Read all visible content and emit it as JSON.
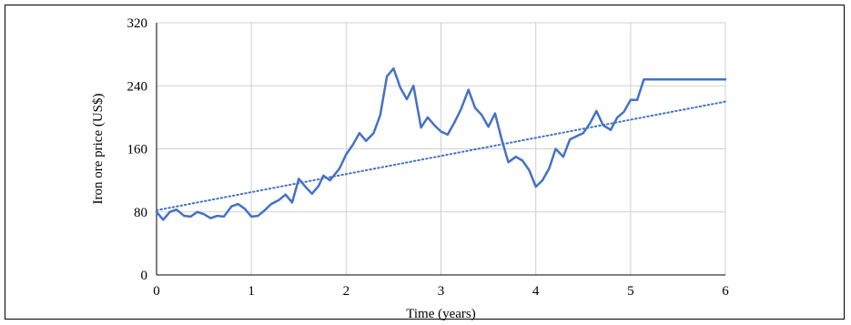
{
  "chart_data": {
    "type": "line",
    "title": "",
    "xlabel": "Time (years)",
    "ylabel": "Iron ore price (US$)",
    "xlim": [
      0,
      6
    ],
    "ylim": [
      0,
      320
    ],
    "x_ticks": [
      "0",
      "1",
      "2",
      "3",
      "4",
      "5",
      "6"
    ],
    "y_ticks": [
      "0",
      "80",
      "160",
      "240",
      "320"
    ],
    "grid": true,
    "legend": "none",
    "series": [
      {
        "type": "line",
        "color": "#4472C4",
        "x": [
          0,
          0.07,
          0.14,
          0.21,
          0.29,
          0.36,
          0.43,
          0.5,
          0.57,
          0.64,
          0.71,
          0.79,
          0.86,
          0.93,
          1.0,
          1.07,
          1.14,
          1.21,
          1.29,
          1.36,
          1.43,
          1.5,
          1.57,
          1.64,
          1.71,
          1.76,
          1.83,
          1.93,
          2.0,
          2.07,
          2.14,
          2.21,
          2.29,
          2.36,
          2.43,
          2.5,
          2.57,
          2.64,
          2.71,
          2.79,
          2.86,
          2.93,
          3.0,
          3.07,
          3.14,
          3.21,
          3.29,
          3.36,
          3.43,
          3.5,
          3.57,
          3.64,
          3.71,
          3.79,
          3.86,
          3.93,
          4.0,
          4.07,
          4.14,
          4.21,
          4.29,
          4.36,
          4.43,
          4.5,
          4.57,
          4.64,
          4.71,
          4.79,
          4.86,
          4.93,
          5.0,
          5.07,
          5.14,
          5.21,
          5.29,
          5.36,
          5.43,
          5.5,
          5.57,
          5.64,
          5.71,
          5.79,
          5.86,
          5.93,
          6.0
        ],
        "y": [
          80,
          70,
          80,
          83,
          75,
          74,
          80,
          77,
          72,
          75,
          74,
          87,
          90,
          84,
          74,
          75,
          82,
          90,
          95,
          102,
          92,
          122,
          112,
          103,
          113,
          126,
          120,
          135,
          153,
          165,
          180,
          170,
          180,
          203,
          252,
          262,
          238,
          223,
          240,
          187,
          200,
          190,
          182,
          178,
          193,
          210,
          235,
          212,
          203,
          188,
          205,
          172,
          143,
          150,
          145,
          133,
          112,
          120,
          135,
          160,
          150,
          172,
          176,
          180,
          192,
          208,
          190,
          184,
          200,
          207,
          222,
          222,
          248,
          248,
          248,
          248,
          248,
          248,
          248,
          248,
          248,
          248,
          248,
          248,
          248
        ]
      },
      {
        "name": "trend",
        "type": "trendline",
        "color": "#4472C4",
        "style": "dotted",
        "x": [
          0,
          6
        ],
        "y": [
          82,
          220
        ]
      }
    ]
  }
}
